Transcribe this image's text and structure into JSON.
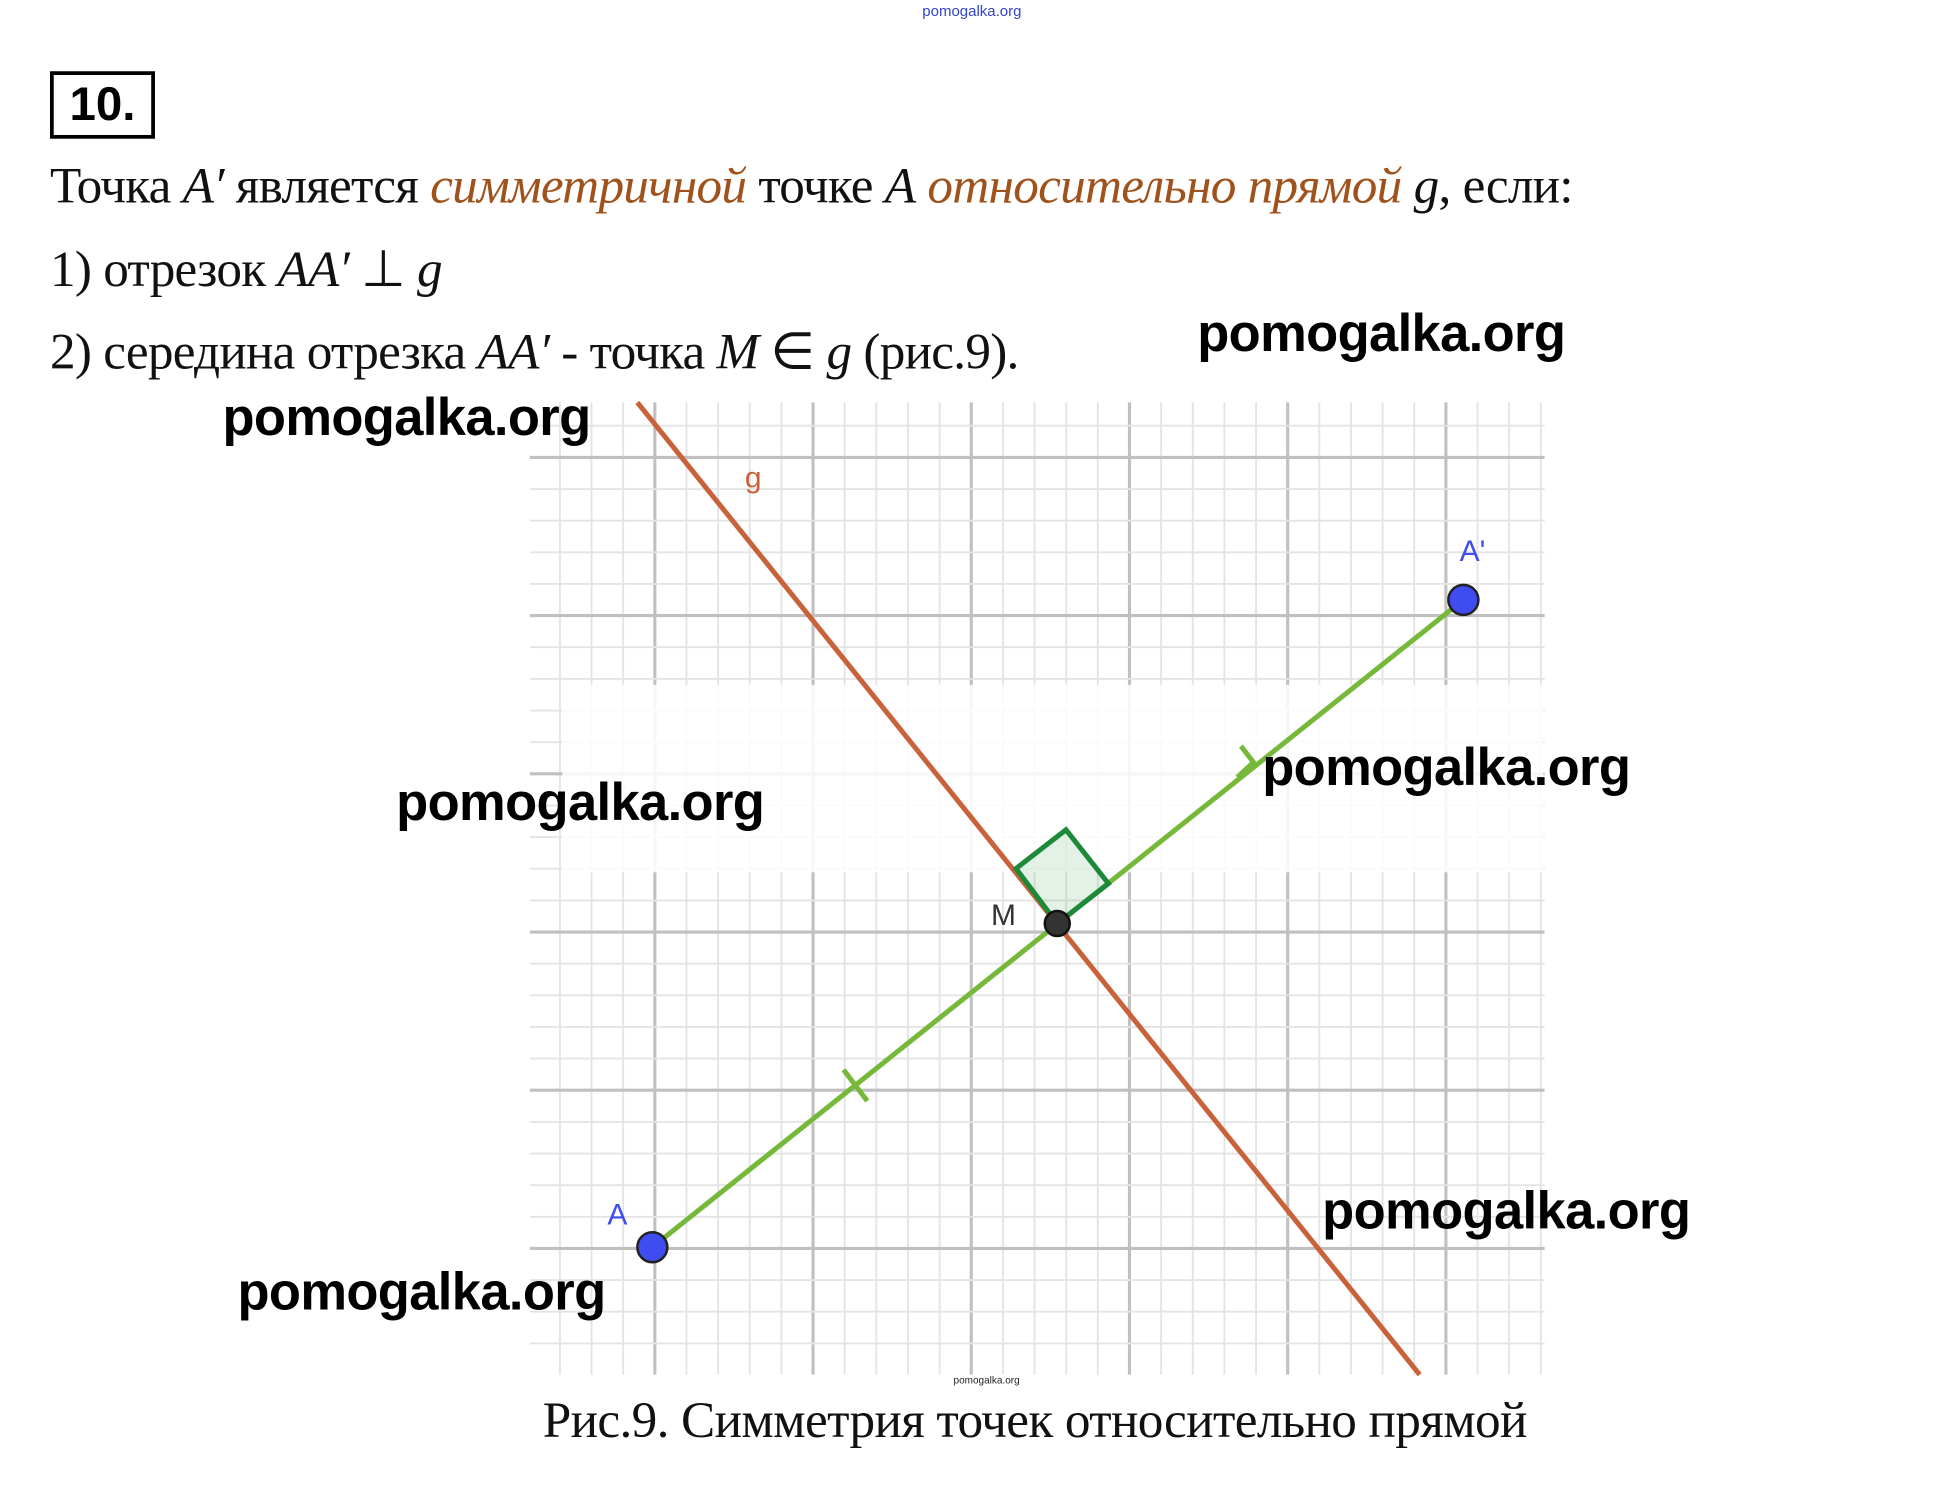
{
  "header": {
    "watermark_top": "pomogalka.org",
    "task_number": "10."
  },
  "text": {
    "line1": {
      "p1": "Точка ",
      "v1": "A′",
      "p2": " является ",
      "term1": "симметричной",
      "p3": " точке ",
      "v2": "A",
      "p4": " ",
      "term2": "относительно прямой",
      "p5": " ",
      "v3": "g",
      "p6": ", если:"
    },
    "line2": {
      "p1": "1) отрезок ",
      "v1": "AA′",
      "p2": " ⊥ ",
      "v2": "g"
    },
    "line3": {
      "p1": "2) середина отрезка ",
      "v1": "AA′",
      "p2": " - точка ",
      "v2": "M",
      "p3": " ∈ ",
      "v3": "g",
      "p4": " (рис.9)."
    }
  },
  "figure": {
    "labels": {
      "line": "g",
      "point_a": "A",
      "point_a_prime": "A'",
      "point_m": "M"
    },
    "colors": {
      "line_g": "#c8623a",
      "segment": "#76b83a",
      "points": "#3f4cf0",
      "midpoint": "#333333",
      "right_angle": "#1d8a3a",
      "grid_major": "#c0c0c0",
      "grid_minor": "#e4e4e4"
    },
    "watermark_small": "pomogalka.org",
    "caption": "Рис.9. Симметрия точек относительно прямой"
  },
  "watermarks": [
    "pomogalka.org",
    "pomogalka.org",
    "pomogalka.org",
    "pomogalka.org",
    "pomogalka.org",
    "pomogalka.org"
  ]
}
